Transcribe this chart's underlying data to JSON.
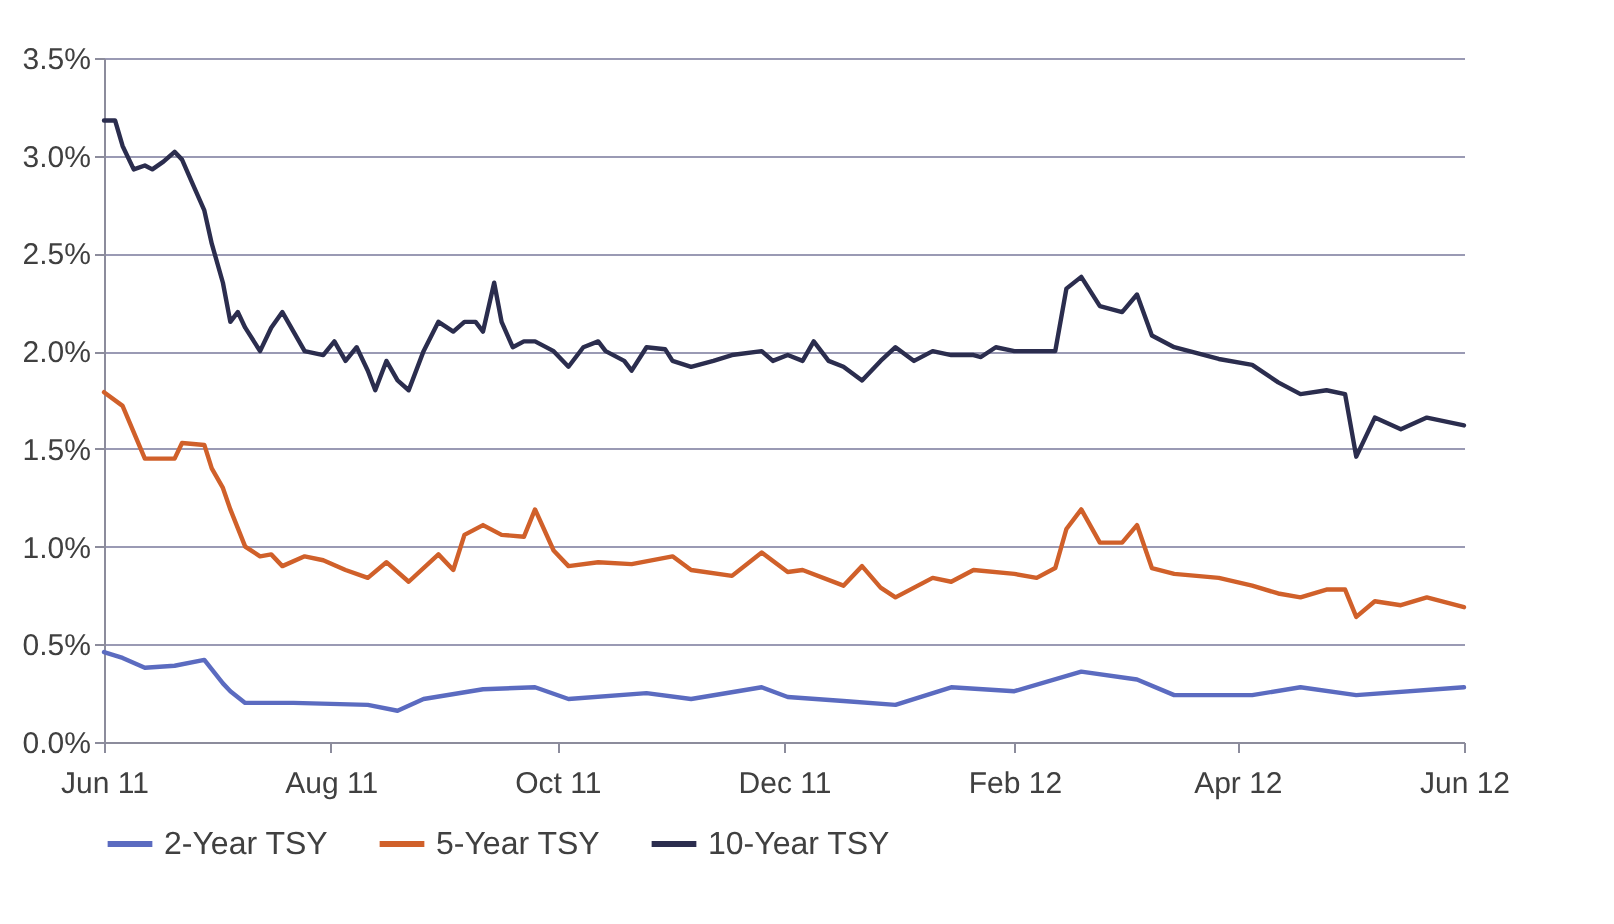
{
  "chart_data": {
    "type": "line",
    "xlim": [
      "2011-06-01",
      "2012-06-01"
    ],
    "xticks": [
      {
        "value": "2011-06-01",
        "label": "Jun 11"
      },
      {
        "value": "2011-08-01",
        "label": "Aug 11"
      },
      {
        "value": "2011-10-01",
        "label": "Oct 11"
      },
      {
        "value": "2011-12-01",
        "label": "Dec 11"
      },
      {
        "value": "2012-02-01",
        "label": "Feb 12"
      },
      {
        "value": "2012-04-01",
        "label": "Apr 12"
      },
      {
        "value": "2012-06-01",
        "label": "Jun 12"
      }
    ],
    "ylim": [
      0,
      3.5
    ],
    "yticks": [
      {
        "value": 0,
        "label": "0.0%"
      },
      {
        "value": 0.5,
        "label": "0.5%"
      },
      {
        "value": 1,
        "label": "1.0%"
      },
      {
        "value": 1.5,
        "label": "1.5%"
      },
      {
        "value": 2,
        "label": "2.0%"
      },
      {
        "value": 2.5,
        "label": "2.5%"
      },
      {
        "value": 3,
        "label": "3.0%"
      },
      {
        "value": 3.5,
        "label": "3.5%"
      }
    ],
    "grid": "y",
    "legend": "bottom",
    "series": [
      {
        "name": "2-Year TSY",
        "color": "#5b6bc0",
        "x": [
          "2011-06-01",
          "2011-06-06",
          "2011-06-12",
          "2011-06-20",
          "2011-06-28",
          "2011-07-03",
          "2011-07-05",
          "2011-07-09",
          "2011-07-22",
          "2011-08-11",
          "2011-08-19",
          "2011-08-26",
          "2011-09-11",
          "2011-09-25",
          "2011-10-04",
          "2011-10-25",
          "2011-11-06",
          "2011-11-25",
          "2011-12-02",
          "2011-12-17",
          "2011-12-31",
          "2012-01-15",
          "2012-02-01",
          "2012-02-19",
          "2012-03-05",
          "2012-03-15",
          "2012-04-05",
          "2012-04-18",
          "2012-05-03",
          "2012-06-01"
        ],
        "values": [
          0.46,
          0.43,
          0.38,
          0.39,
          0.42,
          0.3,
          0.26,
          0.2,
          0.2,
          0.19,
          0.16,
          0.22,
          0.27,
          0.28,
          0.22,
          0.25,
          0.22,
          0.28,
          0.23,
          0.21,
          0.19,
          0.28,
          0.26,
          0.36,
          0.32,
          0.24,
          0.24,
          0.28,
          0.24,
          0.28
        ]
      },
      {
        "name": "5-Year TSY",
        "color": "#d0602a",
        "x": [
          "2011-06-01",
          "2011-06-06",
          "2011-06-12",
          "2011-06-20",
          "2011-06-22",
          "2011-06-28",
          "2011-06-30",
          "2011-07-03",
          "2011-07-05",
          "2011-07-09",
          "2011-07-13",
          "2011-07-16",
          "2011-07-19",
          "2011-07-25",
          "2011-07-30",
          "2011-08-05",
          "2011-08-11",
          "2011-08-16",
          "2011-08-22",
          "2011-08-30",
          "2011-09-03",
          "2011-09-06",
          "2011-09-11",
          "2011-09-16",
          "2011-09-22",
          "2011-09-25",
          "2011-09-30",
          "2011-10-04",
          "2011-10-12",
          "2011-10-21",
          "2011-11-01",
          "2011-11-06",
          "2011-11-17",
          "2011-11-25",
          "2011-12-02",
          "2011-12-06",
          "2011-12-17",
          "2011-12-22",
          "2011-12-27",
          "2011-12-31",
          "2012-01-10",
          "2012-01-15",
          "2012-01-21",
          "2012-02-01",
          "2012-02-07",
          "2012-02-12",
          "2012-02-15",
          "2012-02-19",
          "2012-02-24",
          "2012-03-01",
          "2012-03-05",
          "2012-03-09",
          "2012-03-15",
          "2012-03-27",
          "2012-04-05",
          "2012-04-12",
          "2012-04-18",
          "2012-04-25",
          "2012-04-30",
          "2012-05-03",
          "2012-05-08",
          "2012-05-15",
          "2012-05-22",
          "2012-06-01"
        ],
        "values": [
          1.79,
          1.72,
          1.45,
          1.45,
          1.53,
          1.52,
          1.4,
          1.3,
          1.19,
          1.0,
          0.95,
          0.96,
          0.9,
          0.95,
          0.93,
          0.88,
          0.84,
          0.92,
          0.82,
          0.96,
          0.88,
          1.06,
          1.11,
          1.06,
          1.05,
          1.19,
          0.98,
          0.9,
          0.92,
          0.91,
          0.95,
          0.88,
          0.85,
          0.97,
          0.87,
          0.88,
          0.8,
          0.9,
          0.79,
          0.74,
          0.84,
          0.82,
          0.88,
          0.86,
          0.84,
          0.89,
          1.09,
          1.19,
          1.02,
          1.02,
          1.11,
          0.89,
          0.86,
          0.84,
          0.8,
          0.76,
          0.74,
          0.78,
          0.78,
          0.64,
          0.72,
          0.7,
          0.74,
          0.69
        ]
      },
      {
        "name": "10-Year TSY",
        "color": "#2b2d4e",
        "x": [
          "2011-06-01",
          "2011-06-04",
          "2011-06-06",
          "2011-06-09",
          "2011-06-12",
          "2011-06-14",
          "2011-06-17",
          "2011-06-20",
          "2011-06-22",
          "2011-06-25",
          "2011-06-28",
          "2011-06-30",
          "2011-07-03",
          "2011-07-05",
          "2011-07-07",
          "2011-07-09",
          "2011-07-13",
          "2011-07-16",
          "2011-07-19",
          "2011-07-22",
          "2011-07-25",
          "2011-07-30",
          "2011-08-02",
          "2011-08-05",
          "2011-08-08",
          "2011-08-11",
          "2011-08-13",
          "2011-08-16",
          "2011-08-19",
          "2011-08-22",
          "2011-08-26",
          "2011-08-30",
          "2011-09-03",
          "2011-09-06",
          "2011-09-09",
          "2011-09-11",
          "2011-09-14",
          "2011-09-16",
          "2011-09-19",
          "2011-09-22",
          "2011-09-25",
          "2011-09-30",
          "2011-10-04",
          "2011-10-08",
          "2011-10-12",
          "2011-10-14",
          "2011-10-19",
          "2011-10-21",
          "2011-10-25",
          "2011-10-30",
          "2011-11-01",
          "2011-11-06",
          "2011-11-12",
          "2011-11-17",
          "2011-11-25",
          "2011-11-28",
          "2011-12-02",
          "2011-12-06",
          "2011-12-09",
          "2011-12-13",
          "2011-12-17",
          "2011-12-22",
          "2011-12-27",
          "2011-12-31",
          "2012-01-05",
          "2012-01-10",
          "2012-01-15",
          "2012-01-21",
          "2012-01-23",
          "2012-01-27",
          "2012-02-01",
          "2012-02-07",
          "2012-02-12",
          "2012-02-15",
          "2012-02-19",
          "2012-02-24",
          "2012-03-01",
          "2012-03-05",
          "2012-03-09",
          "2012-03-15",
          "2012-03-27",
          "2012-04-05",
          "2012-04-12",
          "2012-04-18",
          "2012-04-25",
          "2012-04-30",
          "2012-05-03",
          "2012-05-08",
          "2012-05-15",
          "2012-05-22",
          "2012-06-01"
        ],
        "values": [
          3.18,
          3.18,
          3.05,
          2.93,
          2.95,
          2.93,
          2.97,
          3.02,
          2.98,
          2.85,
          2.72,
          2.55,
          2.35,
          2.15,
          2.2,
          2.12,
          2.0,
          2.12,
          2.2,
          2.1,
          2.0,
          1.98,
          2.05,
          1.95,
          2.02,
          1.9,
          1.8,
          1.95,
          1.85,
          1.8,
          2.0,
          2.15,
          2.1,
          2.15,
          2.15,
          2.1,
          2.35,
          2.15,
          2.02,
          2.05,
          2.05,
          2.0,
          1.92,
          2.02,
          2.05,
          2.0,
          1.95,
          1.9,
          2.02,
          2.01,
          1.95,
          1.92,
          1.95,
          1.98,
          2.0,
          1.95,
          1.98,
          1.95,
          2.05,
          1.95,
          1.92,
          1.85,
          1.95,
          2.02,
          1.95,
          2.0,
          1.98,
          1.98,
          1.97,
          2.02,
          2.0,
          2.0,
          2.0,
          2.32,
          2.38,
          2.23,
          2.2,
          2.29,
          2.08,
          2.02,
          1.96,
          1.93,
          1.84,
          1.78,
          1.8,
          1.78,
          1.46,
          1.66,
          1.6,
          1.66,
          1.62
        ]
      }
    ]
  }
}
